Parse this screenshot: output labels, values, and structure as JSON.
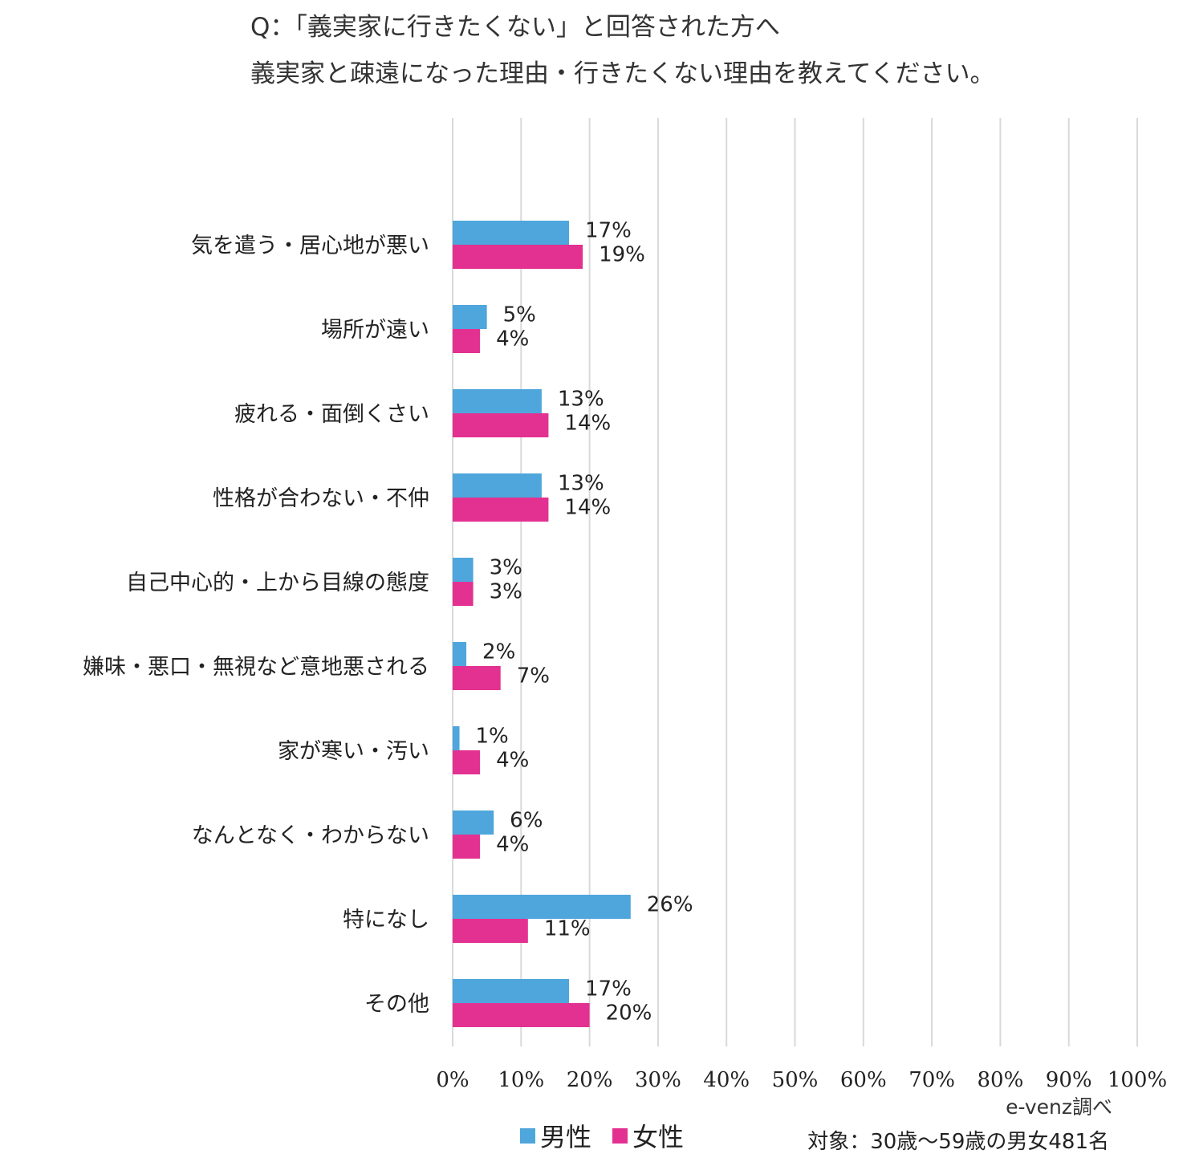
{
  "chart_data": {
    "type": "bar",
    "orientation": "horizontal",
    "title_lines": [
      "Q：「義実家に行きたくない」と回答された方へ",
      "義実家と疎遠になった理由・行きたくない理由を教えてください。"
    ],
    "categories": [
      "気を遣う・居心地が悪い",
      "場所が遠い",
      "疲れる・面倒くさい",
      "性格が合わない・不仲",
      "自己中心的・上から目線の態度",
      "嫌味・悪口・無視など意地悪される",
      "家が寒い・汚い",
      "なんとなく・わからない",
      "特になし",
      "その他"
    ],
    "series": [
      {
        "name": "男性",
        "color": "#4ea6dc",
        "values": [
          17,
          5,
          13,
          13,
          3,
          2,
          1,
          6,
          26,
          17
        ]
      },
      {
        "name": "女性",
        "color": "#e33191",
        "values": [
          19,
          4,
          14,
          14,
          3,
          7,
          4,
          4,
          11,
          20
        ]
      }
    ],
    "value_suffix": "%",
    "xlim": [
      0,
      100
    ],
    "xticks": [
      0,
      10,
      20,
      30,
      40,
      50,
      60,
      70,
      80,
      90,
      100
    ],
    "xtick_labels": [
      "0%",
      "10%",
      "20%",
      "30%",
      "40%",
      "50%",
      "60%",
      "70%",
      "80%",
      "90%",
      "100%"
    ],
    "grid": true,
    "legend_position": "bottom"
  },
  "credit": "e-venz調べ",
  "note": "対象：30歳～59歳の男女481名"
}
